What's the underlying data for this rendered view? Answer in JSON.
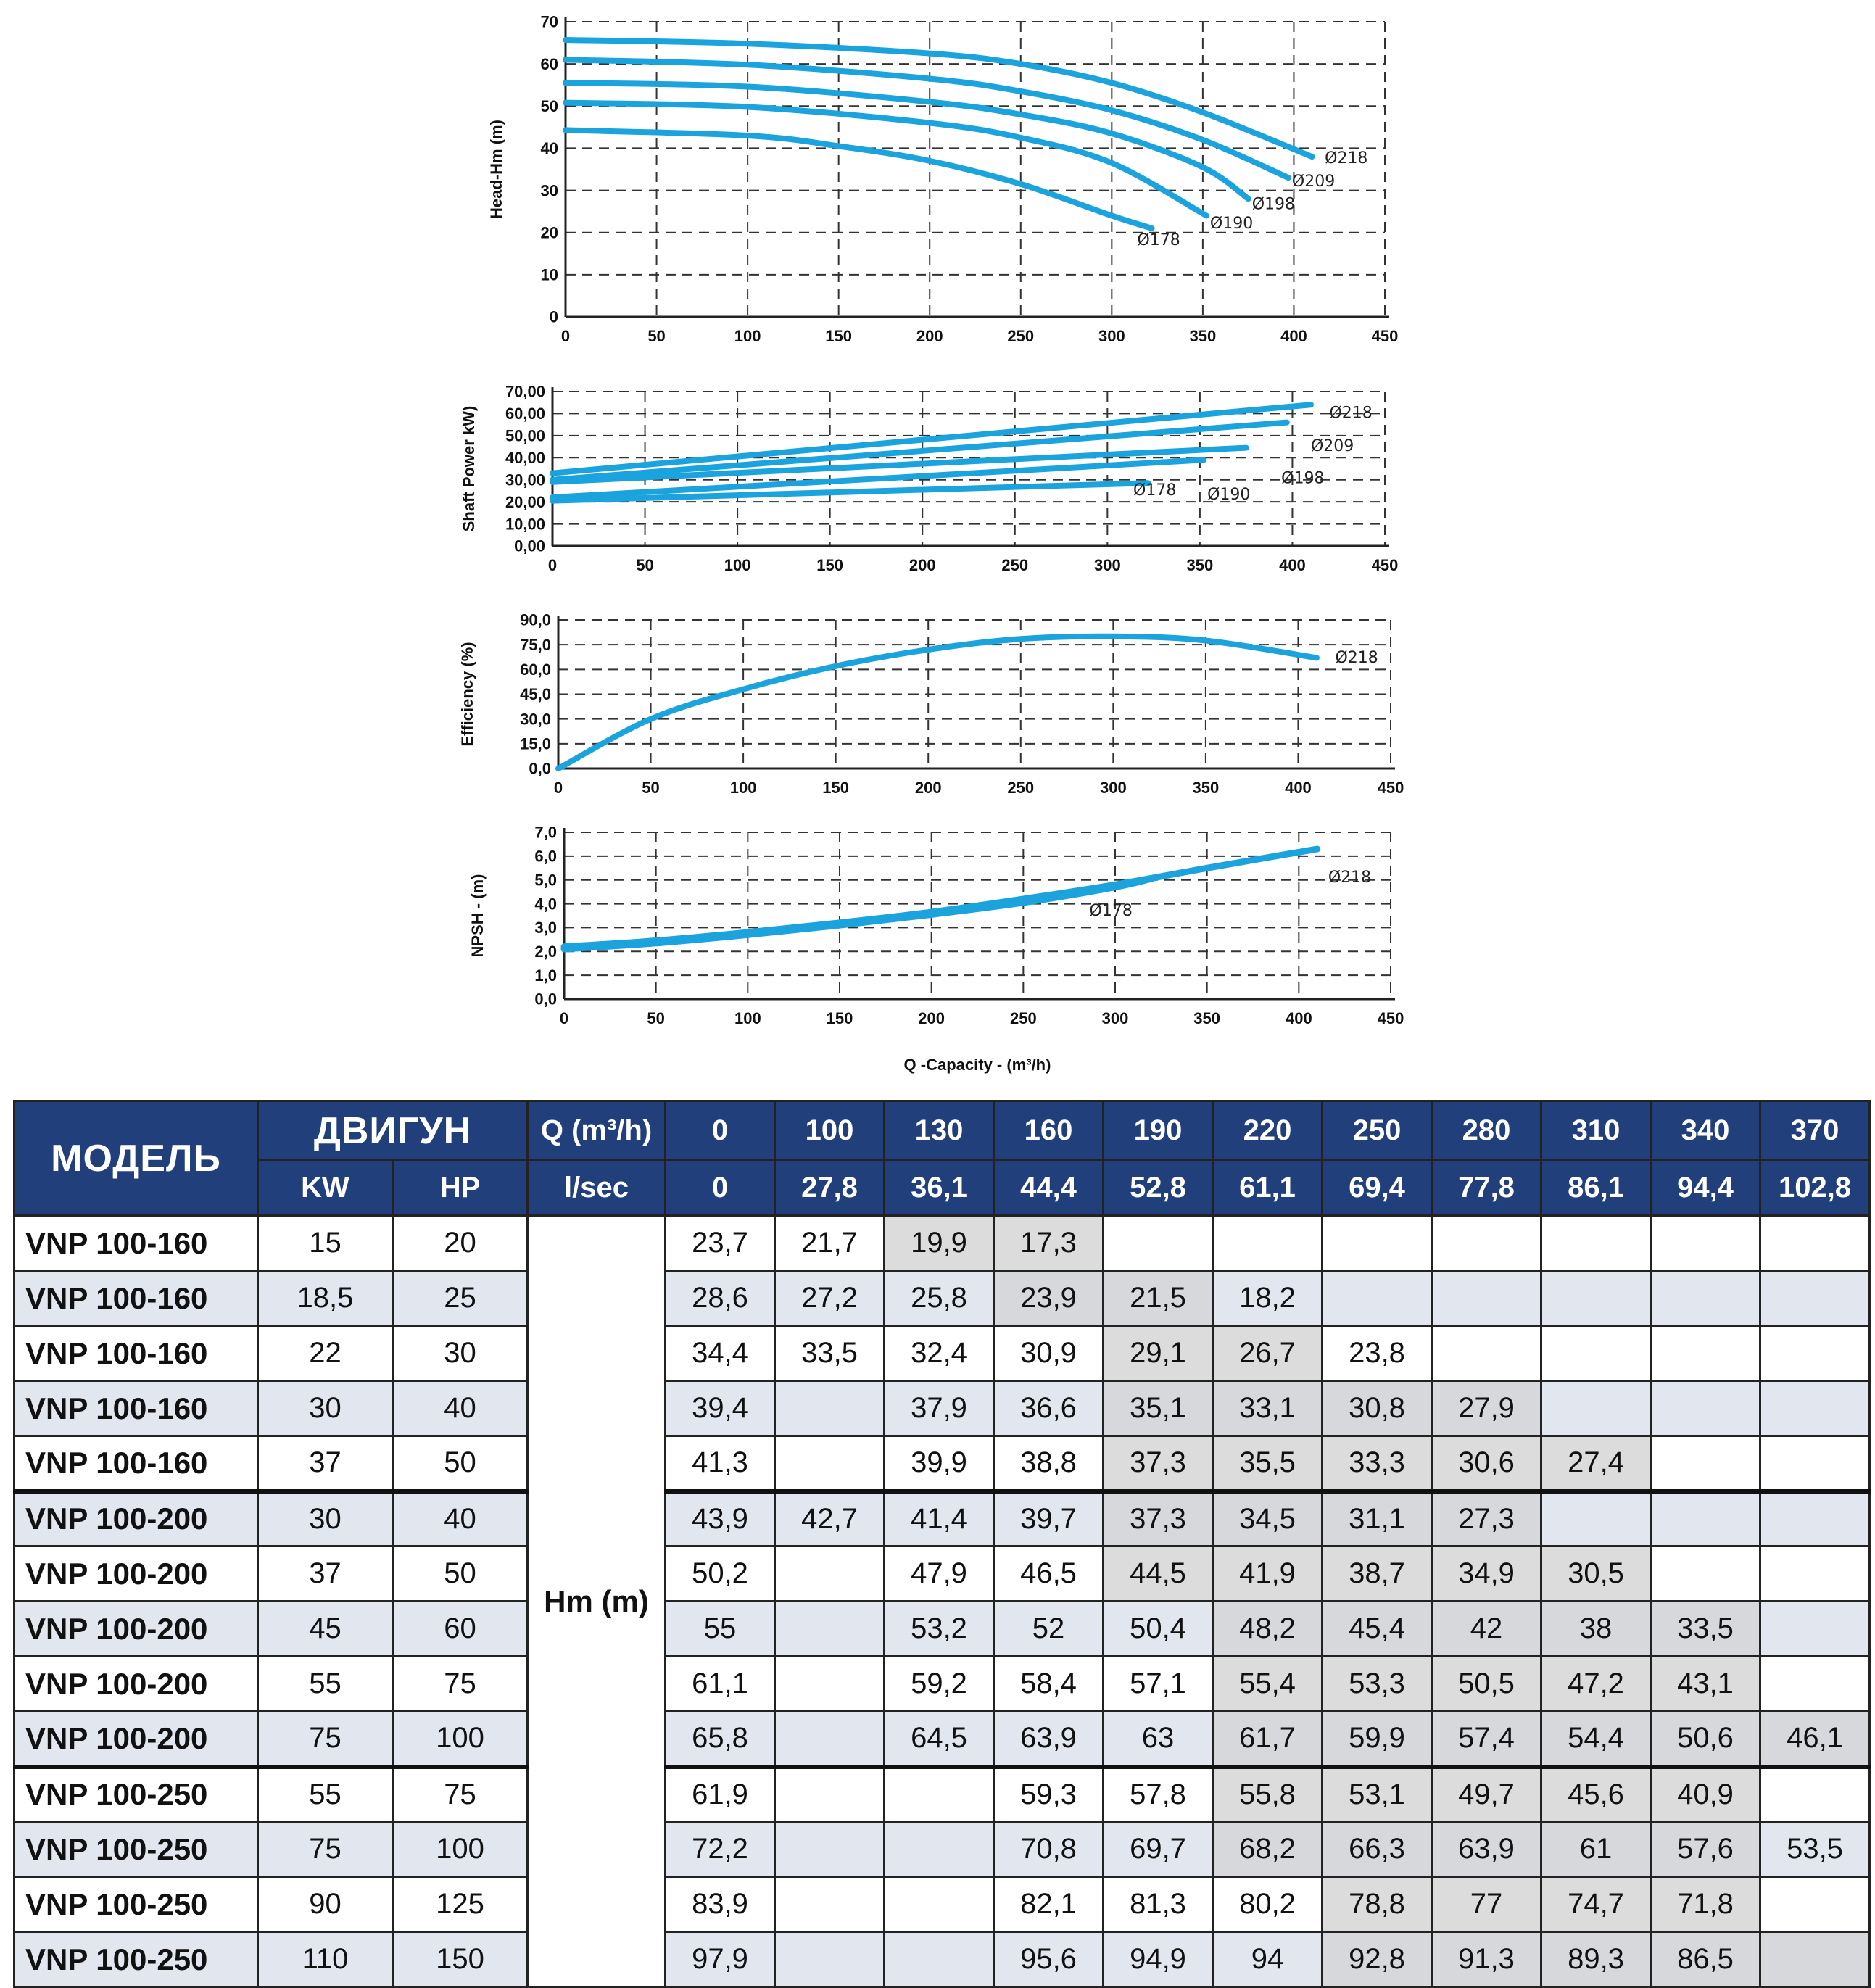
{
  "charts": {
    "head": {
      "ylabel": "Head-Hm (m)",
      "yticks": [
        "0",
        "10",
        "20",
        "30",
        "40",
        "50",
        "60",
        "70"
      ],
      "ylim": [
        0,
        70
      ],
      "xticks": [
        "0",
        "50",
        "100",
        "150",
        "200",
        "250",
        "300",
        "350",
        "400",
        "450"
      ],
      "xlim": [
        0,
        450
      ]
    },
    "power": {
      "ylabel": "Shaft Power  kW)",
      "yticks": [
        "0,00",
        "10,00",
        "20,00",
        "30,00",
        "40,00",
        "50,00",
        "60,00",
        "70,00"
      ],
      "ylim": [
        0,
        70
      ],
      "xticks": [
        "0",
        "50",
        "100",
        "150",
        "200",
        "250",
        "300",
        "350",
        "400",
        "450"
      ],
      "xlim": [
        0,
        450
      ]
    },
    "efficiency": {
      "ylabel": "Efficiency (%)",
      "yticks": [
        "0,0",
        "15,0",
        "30,0",
        "45,0",
        "60,0",
        "75,0",
        "90,0"
      ],
      "ylim": [
        0,
        90
      ],
      "xticks": [
        "0",
        "50",
        "100",
        "150",
        "200",
        "250",
        "300",
        "350",
        "400",
        "450"
      ],
      "xlim": [
        0,
        450
      ]
    },
    "npsh": {
      "ylabel": "NPSH - (m)",
      "xlabel": "Q -Capacity - (m³/h)",
      "yticks": [
        "0,0",
        "1,0",
        "2,0",
        "3,0",
        "4,0",
        "5,0",
        "6,0",
        "7,0"
      ],
      "ylim": [
        0,
        7
      ],
      "xticks": [
        "0",
        "50",
        "100",
        "150",
        "200",
        "250",
        "300",
        "350",
        "400",
        "450"
      ],
      "xlim": [
        0,
        450
      ]
    }
  },
  "chart_data": [
    {
      "type": "line",
      "xlim": [
        0,
        450
      ],
      "ylim": [
        0,
        70
      ],
      "grid": true,
      "series": [
        {
          "name": "Ø218",
          "x": [
            0,
            100,
            200,
            250,
            300,
            350,
            410
          ],
          "y": [
            65.7,
            64.8,
            62.5,
            60,
            55.5,
            48.5,
            38
          ]
        },
        {
          "name": "Ø209",
          "x": [
            0,
            100,
            200,
            250,
            300,
            350,
            397
          ],
          "y": [
            61,
            59.8,
            56.5,
            53.5,
            49,
            42,
            33
          ]
        },
        {
          "name": "Ø198",
          "x": [
            0,
            100,
            200,
            250,
            300,
            350,
            375
          ],
          "y": [
            55.5,
            54.6,
            51,
            48,
            43.5,
            35.5,
            28
          ]
        },
        {
          "name": "Ø190",
          "x": [
            0,
            100,
            200,
            250,
            300,
            352
          ],
          "y": [
            50.8,
            49.8,
            46,
            42.5,
            36.5,
            24
          ]
        },
        {
          "name": "Ø178",
          "x": [
            0,
            100,
            150,
            200,
            250,
            300,
            322
          ],
          "y": [
            44.3,
            43,
            40.5,
            37,
            31.5,
            24,
            21
          ]
        }
      ]
    },
    {
      "type": "line",
      "xlim": [
        0,
        450
      ],
      "ylim": [
        0,
        70
      ],
      "grid": true,
      "series": [
        {
          "name": "Ø218",
          "x": [
            0,
            410
          ],
          "y": [
            33,
            64
          ]
        },
        {
          "name": "Ø209",
          "x": [
            0,
            397
          ],
          "y": [
            30,
            56
          ]
        },
        {
          "name": "Ø198",
          "x": [
            0,
            375
          ],
          "y": [
            29,
            44.5
          ]
        },
        {
          "name": "Ø190",
          "x": [
            0,
            352
          ],
          "y": [
            22,
            39
          ]
        },
        {
          "name": "Ø178",
          "x": [
            0,
            322
          ],
          "y": [
            20.5,
            28.5
          ]
        }
      ]
    },
    {
      "type": "line",
      "xlim": [
        0,
        450
      ],
      "ylim": [
        0,
        90
      ],
      "grid": true,
      "series": [
        {
          "name": "Ø218",
          "x": [
            0,
            50,
            100,
            150,
            200,
            250,
            300,
            350,
            410
          ],
          "y": [
            0,
            30,
            48,
            62,
            72,
            78.5,
            80,
            77.5,
            67
          ]
        }
      ]
    },
    {
      "type": "line",
      "xlim": [
        0,
        450
      ],
      "ylim": [
        0,
        7
      ],
      "grid": true,
      "series": [
        {
          "name": "Ø218",
          "x": [
            0,
            50,
            100,
            150,
            200,
            250,
            300,
            350,
            410
          ],
          "y": [
            2.2,
            2.45,
            2.8,
            3.2,
            3.65,
            4.2,
            4.8,
            5.5,
            6.3
          ]
        },
        {
          "name": "Ø178",
          "x": [
            0,
            50,
            100,
            150,
            200,
            250,
            300,
            322
          ],
          "y": [
            2.1,
            2.35,
            2.7,
            3.1,
            3.55,
            4.05,
            4.7,
            5.1
          ]
        }
      ]
    }
  ],
  "table": {
    "hdr_model": "МОДЕЛЬ",
    "hdr_motor": "ДВИГУН",
    "hdr_kw": "KW",
    "hdr_hp": "HP",
    "hdr_q": "Q (m³/h)",
    "hdr_lsec": "l/sec",
    "hm_label": "Hm (m)",
    "q_values": [
      "0",
      "100",
      "130",
      "160",
      "190",
      "220",
      "250",
      "280",
      "310",
      "340",
      "370"
    ],
    "lsec_values": [
      "0",
      "27,8",
      "36,1",
      "44,4",
      "52,8",
      "61,1",
      "69,4",
      "77,8",
      "86,1",
      "94,4",
      "102,8"
    ],
    "rows": [
      {
        "model": "VNP 100-160",
        "kw": "15",
        "hp": "20",
        "h": [
          "23,7",
          "21,7",
          "19,9",
          "17,3",
          "",
          "",
          "",
          "",
          "",
          "",
          ""
        ]
      },
      {
        "model": "VNP 100-160",
        "kw": "18,5",
        "hp": "25",
        "h": [
          "28,6",
          "27,2",
          "25,8",
          "23,9",
          "21,5",
          "18,2",
          "",
          "",
          "",
          "",
          ""
        ]
      },
      {
        "model": "VNP 100-160",
        "kw": "22",
        "hp": "30",
        "h": [
          "34,4",
          "33,5",
          "32,4",
          "30,9",
          "29,1",
          "26,7",
          "23,8",
          "",
          "",
          "",
          ""
        ]
      },
      {
        "model": "VNP 100-160",
        "kw": "30",
        "hp": "40",
        "h": [
          "39,4",
          "",
          "37,9",
          "36,6",
          "35,1",
          "33,1",
          "30,8",
          "27,9",
          "",
          "",
          ""
        ]
      },
      {
        "model": "VNP 100-160",
        "kw": "37",
        "hp": "50",
        "h": [
          "41,3",
          "",
          "39,9",
          "38,8",
          "37,3",
          "35,5",
          "33,3",
          "30,6",
          "27,4",
          "",
          ""
        ]
      },
      {
        "model": "VNP 100-200",
        "kw": "30",
        "hp": "40",
        "h": [
          "43,9",
          "42,7",
          "41,4",
          "39,7",
          "37,3",
          "34,5",
          "31,1",
          "27,3",
          "",
          "",
          ""
        ]
      },
      {
        "model": "VNP 100-200",
        "kw": "37",
        "hp": "50",
        "h": [
          "50,2",
          "",
          "47,9",
          "46,5",
          "44,5",
          "41,9",
          "38,7",
          "34,9",
          "30,5",
          "",
          ""
        ]
      },
      {
        "model": "VNP 100-200",
        "kw": "45",
        "hp": "60",
        "h": [
          "55",
          "",
          "53,2",
          "52",
          "50,4",
          "48,2",
          "45,4",
          "42",
          "38",
          "33,5",
          ""
        ]
      },
      {
        "model": "VNP 100-200",
        "kw": "55",
        "hp": "75",
        "h": [
          "61,1",
          "",
          "59,2",
          "58,4",
          "57,1",
          "55,4",
          "53,3",
          "50,5",
          "47,2",
          "43,1",
          ""
        ]
      },
      {
        "model": "VNP 100-200",
        "kw": "75",
        "hp": "100",
        "h": [
          "65,8",
          "",
          "64,5",
          "63,9",
          "63",
          "61,7",
          "59,9",
          "57,4",
          "54,4",
          "50,6",
          "46,1"
        ]
      },
      {
        "model": "VNP 100-250",
        "kw": "55",
        "hp": "75",
        "h": [
          "61,9",
          "",
          "",
          "59,3",
          "57,8",
          "55,8",
          "53,1",
          "49,7",
          "45,6",
          "40,9",
          ""
        ]
      },
      {
        "model": "VNP 100-250",
        "kw": "75",
        "hp": "100",
        "h": [
          "72,2",
          "",
          "",
          "70,8",
          "69,7",
          "68,2",
          "66,3",
          "63,9",
          "61",
          "57,6",
          "53,5"
        ]
      },
      {
        "model": "VNP 100-250",
        "kw": "90",
        "hp": "125",
        "h": [
          "83,9",
          "",
          "",
          "82,1",
          "81,3",
          "80,2",
          "78,8",
          "77",
          "74,7",
          "71,8",
          ""
        ]
      },
      {
        "model": "VNP 100-250",
        "kw": "110",
        "hp": "150",
        "h": [
          "97,9",
          "",
          "",
          "95,6",
          "94,9",
          "94",
          "92,8",
          "91,3",
          "89,3",
          "86,5",
          ""
        ]
      }
    ]
  },
  "colors": {
    "curve": "#1aa3dc",
    "header_bg": "#213f7a",
    "row_shade": "#e2e6ef",
    "best_eff": "#dcdcdc"
  }
}
